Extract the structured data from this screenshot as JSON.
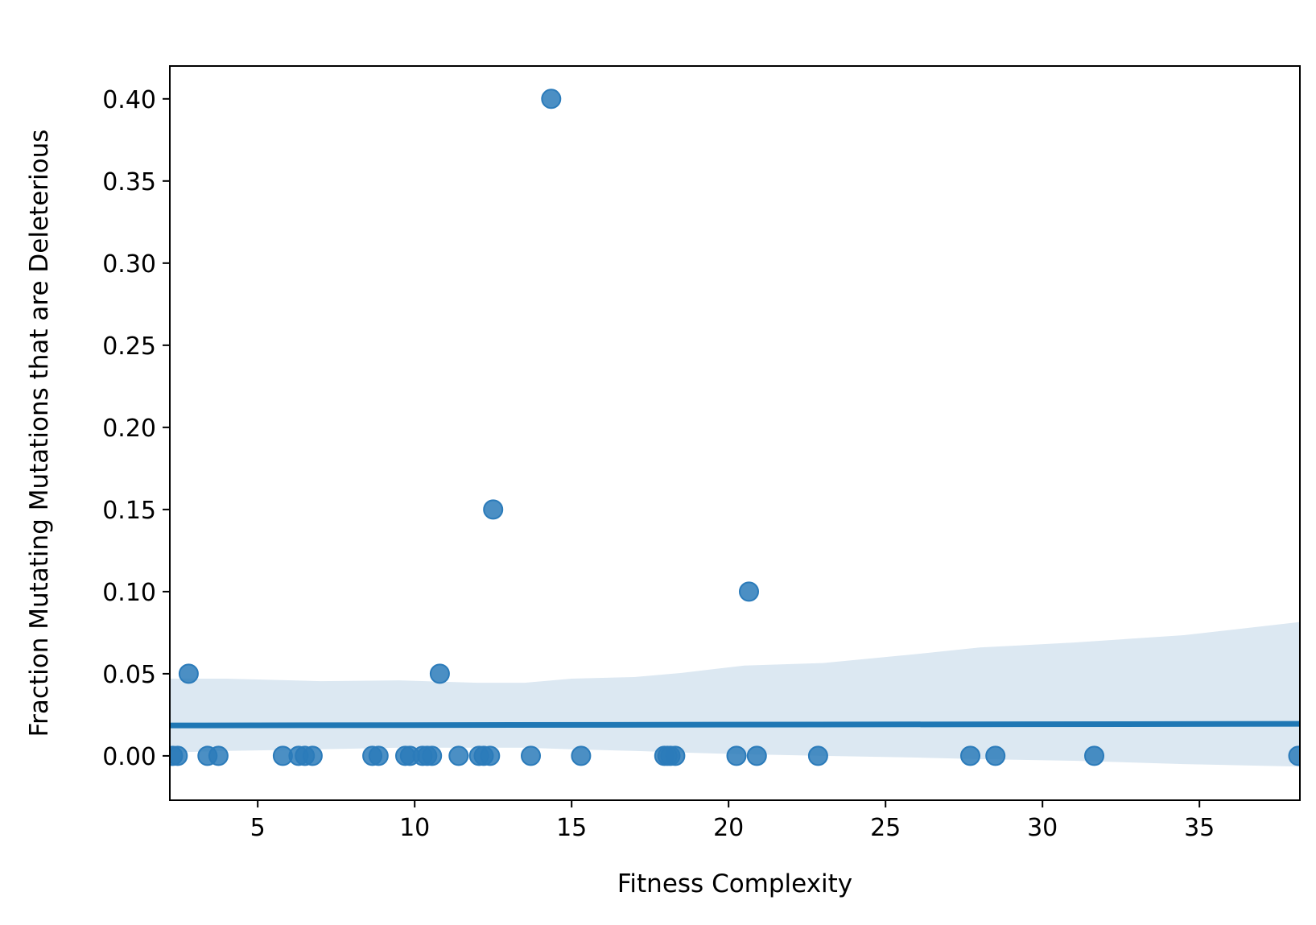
{
  "chart_data": {
    "type": "scatter",
    "title": "",
    "xlabel": "Fitness Complexity",
    "ylabel": "Fraction Mutating Mutations that are Deleterious",
    "xlim": [
      2.2,
      38.2
    ],
    "ylim": [
      -0.027,
      0.42
    ],
    "xticks": [
      5,
      10,
      15,
      20,
      25,
      30,
      35
    ],
    "yticks": [
      0.0,
      0.05,
      0.1,
      0.15,
      0.2,
      0.25,
      0.3,
      0.35,
      0.4
    ],
    "xtick_labels": [
      "5",
      "10",
      "15",
      "20",
      "25",
      "30",
      "35"
    ],
    "ytick_labels": [
      "0.00",
      "0.05",
      "0.10",
      "0.15",
      "0.20",
      "0.25",
      "0.30",
      "0.35",
      "0.40"
    ],
    "grid": false,
    "legend": "none",
    "colors": {
      "points": "#2b7bba",
      "regression_line": "#1f77b4",
      "confidence_band": "#dce8f2"
    },
    "series": [
      {
        "points": [
          {
            "x": 2.3,
            "y": 0.0
          },
          {
            "x": 2.45,
            "y": 0.0
          },
          {
            "x": 2.8,
            "y": 0.05
          },
          {
            "x": 3.4,
            "y": 0.0
          },
          {
            "x": 3.75,
            "y": 0.0
          },
          {
            "x": 5.8,
            "y": 0.0
          },
          {
            "x": 6.3,
            "y": 0.0
          },
          {
            "x": 6.5,
            "y": 0.0
          },
          {
            "x": 6.75,
            "y": 0.0
          },
          {
            "x": 8.65,
            "y": 0.0
          },
          {
            "x": 8.85,
            "y": 0.0
          },
          {
            "x": 9.7,
            "y": 0.0
          },
          {
            "x": 9.85,
            "y": 0.0
          },
          {
            "x": 10.25,
            "y": 0.0
          },
          {
            "x": 10.4,
            "y": 0.0
          },
          {
            "x": 10.55,
            "y": 0.0
          },
          {
            "x": 10.8,
            "y": 0.05
          },
          {
            "x": 11.4,
            "y": 0.0
          },
          {
            "x": 12.05,
            "y": 0.0
          },
          {
            "x": 12.2,
            "y": 0.0
          },
          {
            "x": 12.4,
            "y": 0.0
          },
          {
            "x": 12.5,
            "y": 0.15
          },
          {
            "x": 13.7,
            "y": 0.0
          },
          {
            "x": 14.35,
            "y": 0.4
          },
          {
            "x": 15.3,
            "y": 0.0
          },
          {
            "x": 17.95,
            "y": 0.0
          },
          {
            "x": 18.05,
            "y": 0.0
          },
          {
            "x": 18.15,
            "y": 0.0
          },
          {
            "x": 18.3,
            "y": 0.0
          },
          {
            "x": 20.25,
            "y": 0.0
          },
          {
            "x": 20.65,
            "y": 0.1
          },
          {
            "x": 20.9,
            "y": 0.0
          },
          {
            "x": 22.85,
            "y": 0.0
          },
          {
            "x": 27.7,
            "y": 0.0
          },
          {
            "x": 28.5,
            "y": 0.0
          },
          {
            "x": 31.65,
            "y": 0.0
          },
          {
            "x": 38.15,
            "y": 0.0
          }
        ]
      }
    ],
    "regression": {
      "x": [
        2.2,
        38.2
      ],
      "y": [
        0.0185,
        0.0195
      ]
    },
    "confidence_band": [
      {
        "x": 2.2,
        "lower": 0.002,
        "upper": 0.047
      },
      {
        "x": 4.0,
        "lower": 0.003,
        "upper": 0.047
      },
      {
        "x": 7.0,
        "lower": 0.004,
        "upper": 0.0455
      },
      {
        "x": 9.5,
        "lower": 0.005,
        "upper": 0.046
      },
      {
        "x": 12.0,
        "lower": 0.005,
        "upper": 0.0445
      },
      {
        "x": 13.5,
        "lower": 0.005,
        "upper": 0.0445
      },
      {
        "x": 15.0,
        "lower": 0.004,
        "upper": 0.047
      },
      {
        "x": 17.0,
        "lower": 0.003,
        "upper": 0.048
      },
      {
        "x": 18.5,
        "lower": 0.002,
        "upper": 0.0505
      },
      {
        "x": 20.5,
        "lower": 0.001,
        "upper": 0.055
      },
      {
        "x": 23.0,
        "lower": 0.0,
        "upper": 0.0565
      },
      {
        "x": 26.0,
        "lower": -0.001,
        "upper": 0.062
      },
      {
        "x": 28.0,
        "lower": -0.002,
        "upper": 0.066
      },
      {
        "x": 31.0,
        "lower": -0.003,
        "upper": 0.069
      },
      {
        "x": 34.5,
        "lower": -0.005,
        "upper": 0.0735
      },
      {
        "x": 38.2,
        "lower": -0.0065,
        "upper": 0.0815
      }
    ]
  }
}
